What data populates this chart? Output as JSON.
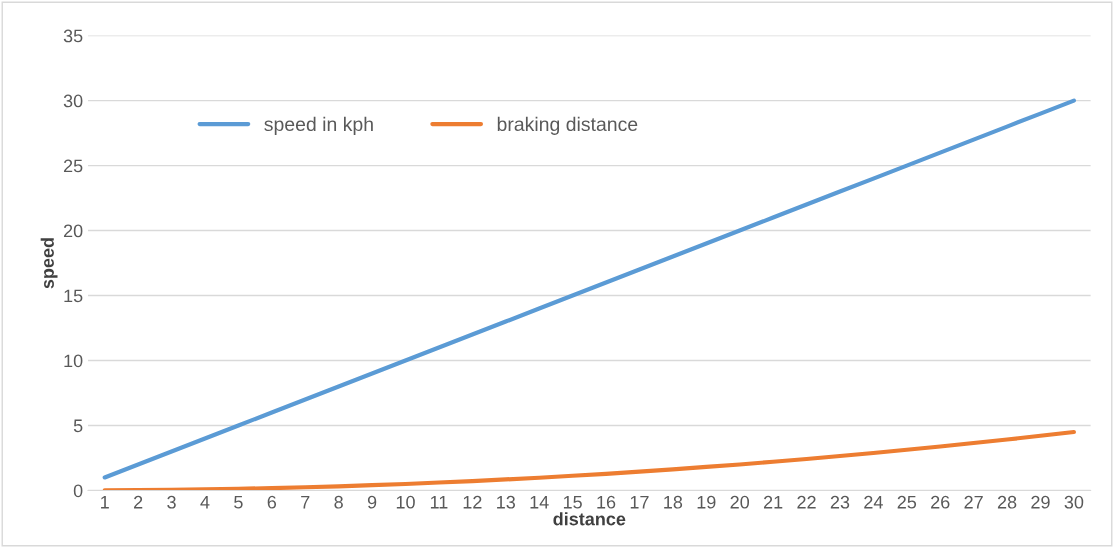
{
  "chart_data": {
    "type": "line",
    "xlabel": "distance",
    "ylabel": "speed",
    "categories": [
      "1",
      "2",
      "3",
      "4",
      "5",
      "6",
      "7",
      "8",
      "9",
      "10",
      "11",
      "12",
      "13",
      "14",
      "15",
      "16",
      "17",
      "18",
      "19",
      "20",
      "21",
      "22",
      "23",
      "24",
      "25",
      "26",
      "27",
      "28",
      "29",
      "30"
    ],
    "series": [
      {
        "name": "speed in kph",
        "color": "#5b9bd5",
        "values": [
          1,
          2,
          3,
          4,
          5,
          6,
          7,
          8,
          9,
          10,
          11,
          12,
          13,
          14,
          15,
          16,
          17,
          18,
          19,
          20,
          21,
          22,
          23,
          24,
          25,
          26,
          27,
          28,
          29,
          30
        ]
      },
      {
        "name": "braking distance",
        "color": "#ed7d31",
        "values": [
          0.01,
          0.02,
          0.05,
          0.08,
          0.13,
          0.18,
          0.25,
          0.32,
          0.41,
          0.5,
          0.61,
          0.72,
          0.85,
          0.98,
          1.13,
          1.28,
          1.45,
          1.62,
          1.81,
          2.0,
          2.21,
          2.42,
          2.65,
          2.88,
          3.13,
          3.38,
          3.65,
          3.92,
          4.21,
          4.5
        ]
      }
    ],
    "ylim": [
      0,
      35
    ],
    "yticks": [
      0,
      5,
      10,
      15,
      20,
      25,
      30,
      35
    ],
    "grid": "y",
    "legend": "top",
    "marker": "none",
    "line_style": "solid"
  }
}
